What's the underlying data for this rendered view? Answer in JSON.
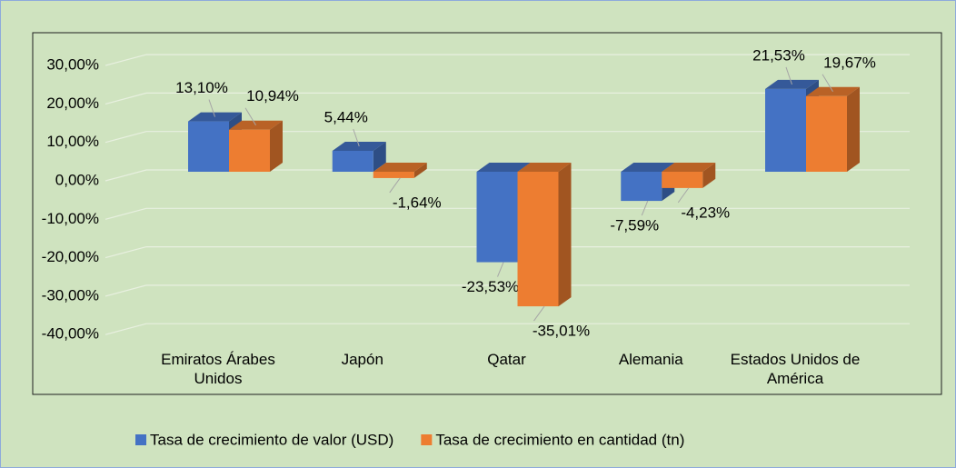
{
  "chart_data": {
    "type": "bar3d",
    "categories": [
      "Emiratos Árabes Unidos",
      "Japón",
      "Qatar",
      "Alemania",
      "Estados Unidos de América"
    ],
    "series": [
      {
        "name": "Tasa de crecimiento de valor (USD)",
        "color": "#4472c4",
        "values": [
          13.1,
          5.44,
          -23.53,
          -7.59,
          21.53
        ],
        "value_labels": [
          "13,10%",
          "5,44%",
          "-23,53%",
          "-7,59%",
          "21,53%"
        ]
      },
      {
        "name": "Tasa de crecimiento en cantidad (tn)",
        "color": "#ed7d31",
        "values": [
          10.94,
          -1.64,
          -35.01,
          -4.23,
          19.67
        ],
        "value_labels": [
          "10,94%",
          "-1,64%",
          "-35,01%",
          "-4,23%",
          "19,67%"
        ]
      }
    ],
    "ylim": [
      -40,
      30
    ],
    "yticks": [
      {
        "value": -40,
        "label": "-40,00%"
      },
      {
        "value": -30,
        "label": "-30,00%"
      },
      {
        "value": -20,
        "label": "-20,00%"
      },
      {
        "value": -10,
        "label": "-10,00%"
      },
      {
        "value": 0,
        "label": "0,00%"
      },
      {
        "value": 10,
        "label": "10,00%"
      },
      {
        "value": 20,
        "label": "20,00%"
      },
      {
        "value": 30,
        "label": "30,00%"
      }
    ],
    "grid": true,
    "legend": "bottom"
  }
}
